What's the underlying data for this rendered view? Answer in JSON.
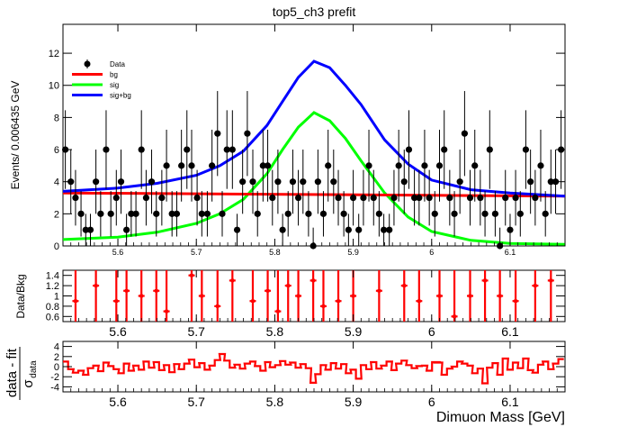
{
  "chart_data": [
    {
      "type": "scatter",
      "title": "top5_ch3   prefit",
      "xlabel": "",
      "ylabel": "Events/ 0.006435 GeV",
      "xlim": [
        5.53,
        6.17
      ],
      "ylim": [
        0,
        13.8
      ],
      "x_ticks": [
        "5.6",
        "5.7",
        "5.8",
        "5.9",
        "6",
        "6.1"
      ],
      "y_ticks": [
        "0",
        "2",
        "4",
        "6",
        "8",
        "10",
        "12"
      ],
      "legend_placement": "top-left",
      "legend": [
        {
          "label": "Data",
          "color": "#000000",
          "kind": "marker"
        },
        {
          "label": "bg",
          "color": "#ff0000",
          "kind": "line"
        },
        {
          "label": "sig",
          "color": "#00ff00",
          "kind": "line"
        },
        {
          "label": "sig+bg",
          "color": "#0000ff",
          "kind": "line"
        }
      ],
      "series": [
        {
          "name": "Data",
          "x": [
            5.533,
            5.54,
            5.546,
            5.553,
            5.559,
            5.565,
            5.572,
            5.578,
            5.585,
            5.591,
            5.598,
            5.604,
            5.611,
            5.617,
            5.623,
            5.63,
            5.636,
            5.643,
            5.649,
            5.656,
            5.662,
            5.669,
            5.675,
            5.681,
            5.688,
            5.694,
            5.701,
            5.707,
            5.714,
            5.72,
            5.727,
            5.733,
            5.739,
            5.746,
            5.752,
            5.759,
            5.765,
            5.772,
            5.778,
            5.785,
            5.791,
            5.797,
            5.804,
            5.81,
            5.817,
            5.823,
            5.83,
            5.836,
            5.843,
            5.849,
            5.855,
            5.862,
            5.868,
            5.875,
            5.881,
            5.888,
            5.894,
            5.9,
            5.907,
            5.913,
            5.92,
            5.926,
            5.933,
            5.939,
            5.946,
            5.952,
            5.958,
            5.965,
            5.971,
            5.978,
            5.984,
            5.991,
            5.997,
            6.004,
            6.01,
            6.016,
            6.023,
            6.029,
            6.036,
            6.042,
            6.049,
            6.055,
            6.062,
            6.068,
            6.074,
            6.081,
            6.087,
            6.094,
            6.1,
            6.107,
            6.113,
            6.12,
            6.126,
            6.132,
            6.139,
            6.145,
            6.152,
            6.158,
            6.165
          ],
          "y": [
            6,
            4,
            3,
            2,
            1,
            1,
            4,
            2,
            6,
            2,
            3,
            4,
            1,
            2,
            2,
            6,
            3,
            4,
            2,
            3,
            5,
            2,
            2,
            5,
            6,
            5,
            3,
            2,
            2,
            5,
            7,
            2,
            6,
            6,
            1,
            4,
            7,
            4,
            2,
            5,
            5,
            3,
            4,
            1,
            2,
            4,
            3,
            4,
            2,
            0,
            4,
            2,
            5,
            4,
            3,
            2,
            1,
            3,
            1,
            3,
            5,
            3,
            2,
            1,
            1,
            3,
            5,
            4,
            6,
            3,
            3,
            5,
            3,
            2,
            5,
            6,
            3,
            2,
            4,
            7,
            3,
            5,
            3,
            2,
            6,
            2,
            0,
            3,
            1,
            3,
            2,
            6,
            4,
            3,
            5,
            2,
            4,
            4,
            6
          ]
        },
        {
          "name": "bg",
          "x": [
            5.53,
            6.17
          ],
          "y": [
            3.3,
            3.1
          ]
        },
        {
          "name": "sig",
          "x": [
            5.53,
            5.6,
            5.65,
            5.7,
            5.73,
            5.76,
            5.79,
            5.81,
            5.83,
            5.85,
            5.87,
            5.89,
            5.91,
            5.94,
            5.97,
            6.0,
            6.05,
            6.1,
            6.17
          ],
          "y": [
            0.4,
            0.55,
            0.85,
            1.4,
            2.0,
            2.9,
            4.5,
            6.0,
            7.4,
            8.3,
            7.8,
            6.7,
            5.3,
            3.3,
            1.8,
            0.9,
            0.35,
            0.15,
            0.1
          ]
        },
        {
          "name": "sig+bg",
          "x": [
            5.53,
            5.6,
            5.65,
            5.7,
            5.73,
            5.76,
            5.79,
            5.81,
            5.83,
            5.85,
            5.87,
            5.89,
            5.91,
            5.94,
            5.97,
            6.0,
            6.05,
            6.1,
            6.17
          ],
          "y": [
            3.4,
            3.6,
            3.9,
            4.4,
            5.0,
            5.9,
            7.5,
            9.0,
            10.5,
            11.5,
            11.1,
            10.0,
            8.8,
            6.6,
            5.1,
            4.1,
            3.5,
            3.3,
            3.1
          ]
        }
      ]
    },
    {
      "type": "scatter",
      "title": "",
      "ylabel": "Data/Bkg",
      "xlim": [
        5.53,
        6.17
      ],
      "ylim": [
        0.5,
        1.5
      ],
      "x_ticks": [
        "5.6",
        "5.7",
        "5.8",
        "5.9",
        "6",
        "6.1"
      ],
      "y_ticks": [
        "0.6",
        "0.8",
        "1",
        "1.2",
        "1.4"
      ],
      "series": [
        {
          "name": "Data/Bkg",
          "color": "#ff0000",
          "x": [
            5.546,
            5.572,
            5.598,
            5.611,
            5.63,
            5.649,
            5.662,
            5.694,
            5.707,
            5.727,
            5.746,
            5.772,
            5.791,
            5.804,
            5.817,
            5.83,
            5.849,
            5.862,
            5.881,
            5.9,
            5.933,
            5.965,
            5.984,
            6.01,
            6.029,
            6.049,
            6.068,
            6.087,
            6.107,
            6.132,
            6.152
          ],
          "y": [
            0.9,
            1.2,
            0.9,
            1.1,
            1.0,
            1.1,
            0.7,
            1.4,
            1.0,
            0.8,
            1.3,
            0.9,
            1.1,
            0.7,
            1.2,
            1.0,
            1.3,
            0.8,
            0.9,
            1.0,
            1.1,
            1.2,
            0.9,
            1.0,
            0.6,
            1.0,
            1.3,
            1.0,
            0.9,
            1.2,
            1.3
          ]
        }
      ]
    },
    {
      "type": "line",
      "title": "",
      "xlabel": "Dimuon Mass [GeV]",
      "ylabel": "data - fit",
      "ylabel_sub": "σ",
      "ylabel_sub_index": "data",
      "xlim": [
        5.53,
        6.17
      ],
      "ylim": [
        -5,
        5
      ],
      "x_ticks": [
        "5.6",
        "5.7",
        "5.8",
        "5.9",
        "6",
        "6.1"
      ],
      "y_ticks": [
        "-4",
        "-2",
        "0",
        "2",
        "4"
      ],
      "series": [
        {
          "name": "pull",
          "color": "#ff0000",
          "x": [
            5.533,
            5.54,
            5.546,
            5.553,
            5.559,
            5.565,
            5.572,
            5.578,
            5.585,
            5.591,
            5.598,
            5.604,
            5.611,
            5.617,
            5.623,
            5.63,
            5.636,
            5.643,
            5.649,
            5.656,
            5.662,
            5.669,
            5.675,
            5.681,
            5.688,
            5.694,
            5.701,
            5.707,
            5.714,
            5.72,
            5.727,
            5.733,
            5.739,
            5.746,
            5.752,
            5.759,
            5.765,
            5.772,
            5.778,
            5.785,
            5.791,
            5.797,
            5.804,
            5.81,
            5.817,
            5.823,
            5.83,
            5.836,
            5.843,
            5.849,
            5.855,
            5.862,
            5.868,
            5.875,
            5.881,
            5.888,
            5.894,
            5.9,
            5.907,
            5.913,
            5.92,
            5.926,
            5.933,
            5.939,
            5.946,
            5.952,
            5.958,
            5.965,
            5.971,
            5.978,
            5.984,
            5.991,
            5.997,
            6.004,
            6.01,
            6.016,
            6.023,
            6.029,
            6.036,
            6.042,
            6.049,
            6.055,
            6.062,
            6.068,
            6.074,
            6.081,
            6.087,
            6.094,
            6.1,
            6.107,
            6.113,
            6.12,
            6.126,
            6.132,
            6.139,
            6.145,
            6.152,
            6.158,
            6.165
          ],
          "y": [
            1.0,
            -0.5,
            -1.2,
            -0.8,
            -1.6,
            -0.3,
            0.2,
            -0.9,
            0.8,
            0.1,
            -0.5,
            -1.3,
            0.6,
            -0.8,
            0.2,
            -0.6,
            1.0,
            -0.2,
            0.9,
            -0.7,
            0.3,
            -1.1,
            0.5,
            -0.5,
            0.6,
            1.4,
            -0.1,
            0.7,
            -0.6,
            0.2,
            1.3,
            2.5,
            1.2,
            -0.2,
            0.4,
            -0.4,
            0.6,
            1.0,
            0.1,
            -0.8,
            0.9,
            -0.1,
            0.3,
            1.1,
            0.4,
            0.8,
            -0.2,
            0.5,
            -0.3,
            -3.2,
            -1.5,
            0.3,
            -0.6,
            0.7,
            -0.4,
            0.5,
            -1.3,
            -0.6,
            -2.4,
            0.3,
            -0.5,
            0.9,
            -0.4,
            0.2,
            1.0,
            -0.7,
            0.6,
            1.2,
            0.3,
            -0.3,
            0.1,
            0.2,
            -0.8,
            0.9,
            0.8,
            -1.6,
            -0.4,
            0.0,
            1.0,
            0.6,
            0.2,
            -1.3,
            -0.4,
            -3.3,
            -0.2,
            0.7,
            -1.6,
            1.6,
            -0.6,
            0.8,
            -0.3,
            1.6,
            -0.7,
            -1.2,
            0.4,
            1.0,
            -0.5,
            0.6,
            1.5
          ]
        }
      ]
    }
  ]
}
